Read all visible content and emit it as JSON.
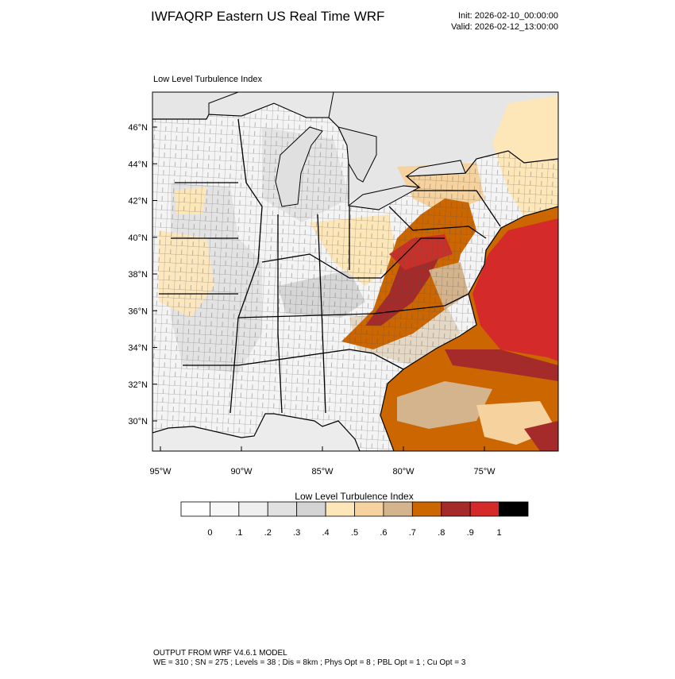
{
  "header": {
    "title": "IWFAQRP Eastern US Real Time WRF",
    "init": "Init: 2026-02-10_00:00:00",
    "valid": "Valid: 2026-02-12_13:00:00"
  },
  "map": {
    "panel_label": "Low Level Turbulence Index",
    "lat_labels": [
      "46°N",
      "44°N",
      "42°N",
      "40°N",
      "38°N",
      "36°N",
      "34°N",
      "32°N",
      "30°N"
    ],
    "lon_labels": [
      "95°W",
      "90°W",
      "85°W",
      "80°W",
      "75°W"
    ]
  },
  "colorbar": {
    "title": "Low Level Turbulence Index",
    "colors": [
      "#ffffff",
      "#f7f7f7",
      "#efefef",
      "#e1e1e1",
      "#d4d4d4",
      "#fde6b8",
      "#f5d29e",
      "#d4b48c",
      "#cc6600",
      "#a52a2a",
      "#d42a2a",
      "#000000"
    ],
    "labels": [
      "0",
      ".1",
      ".2",
      ".3",
      ".4",
      ".5",
      ".6",
      ".7",
      ".8",
      ".9",
      "1"
    ]
  },
  "footer": {
    "line1": "OUTPUT FROM WRF V4.6.1 MODEL",
    "line2": "WE = 310 ; SN = 275 ; Levels = 38 ; Dis = 8km ; Phys Opt = 8 ; PBL Opt = 1 ; Cu Opt = 3"
  }
}
